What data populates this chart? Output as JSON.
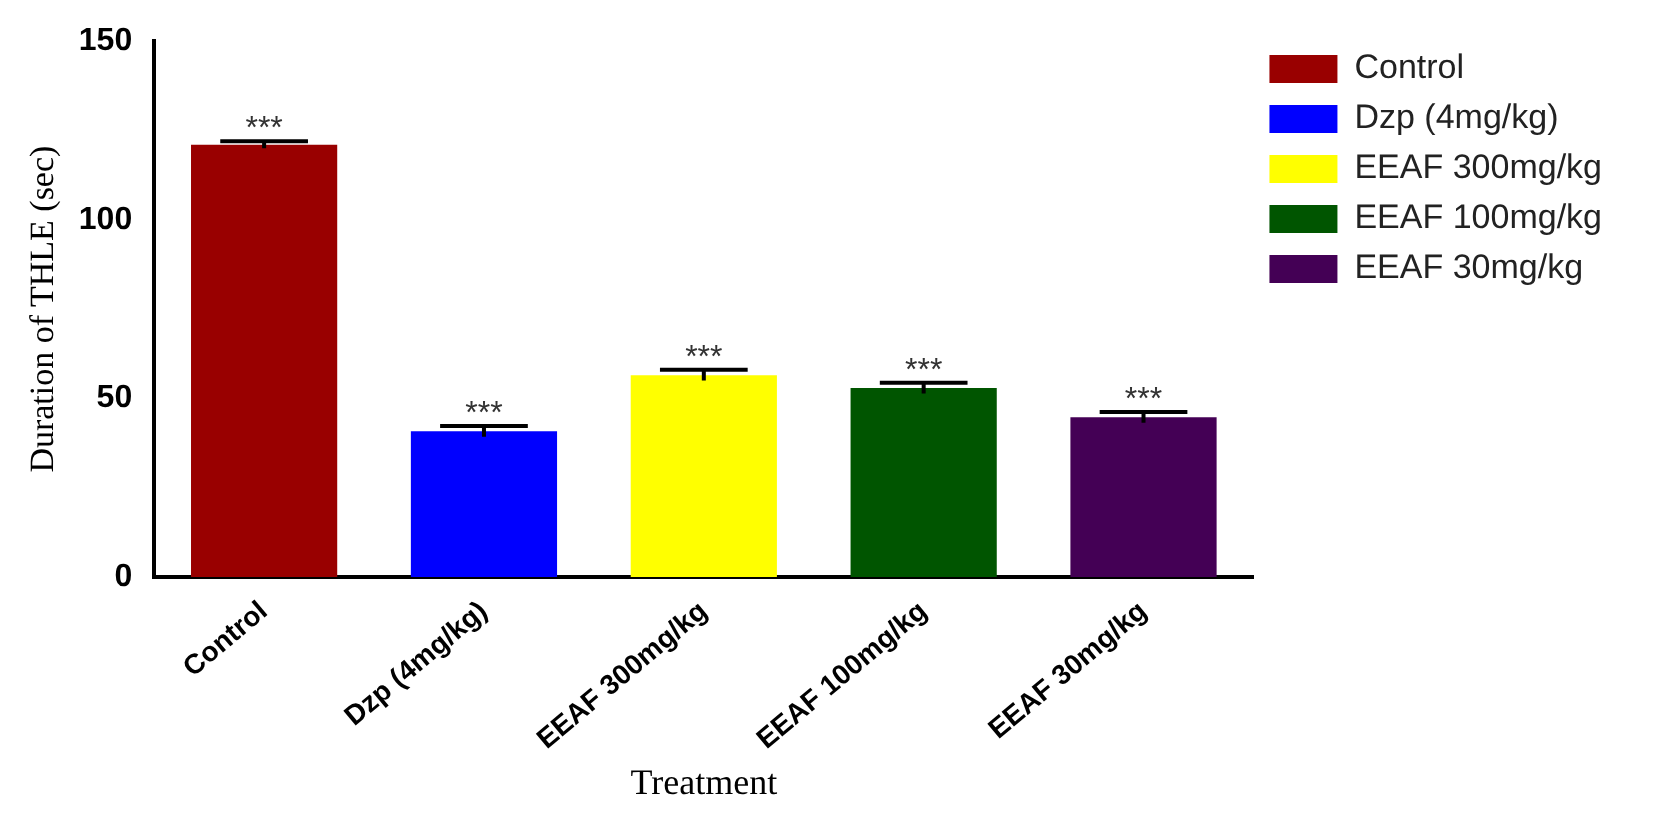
{
  "chart_data": {
    "type": "bar",
    "xlabel": "Treatment",
    "ylabel": "Duration of THLE (sec)",
    "categories": [
      "Control",
      "Dzp (4mg/kg)",
      "EEAF 300mg/kg",
      "EEAF 100mg/kg",
      "EEAF 30mg/kg"
    ],
    "series": [
      {
        "name": "Control",
        "color": "#990000",
        "values": [
          121,
          null,
          null,
          null,
          null
        ],
        "errors": [
          1,
          null,
          null,
          null,
          null
        ]
      },
      {
        "name": "Dzp (4mg/kg)",
        "color": "#0000ff",
        "values": [
          null,
          40.8,
          null,
          null,
          null
        ],
        "errors": [
          null,
          1.5,
          null,
          null,
          null
        ]
      },
      {
        "name": "EEAF 300mg/kg",
        "color": "#ffff00",
        "values": [
          null,
          null,
          56.5,
          null,
          null
        ],
        "errors": [
          null,
          null,
          1.5,
          null,
          null
        ]
      },
      {
        "name": "EEAF 100mg/kg",
        "color": "#005500",
        "values": [
          null,
          null,
          null,
          52.9,
          null
        ],
        "errors": [
          null,
          null,
          null,
          1.5,
          null
        ]
      },
      {
        "name": "EEAF 30mg/kg",
        "color": "#440055",
        "values": [
          null,
          null,
          null,
          null,
          44.7
        ],
        "errors": [
          null,
          null,
          null,
          null,
          1.5
        ]
      }
    ],
    "ylim": [
      0,
      150
    ],
    "yticks": [
      0,
      50,
      100,
      150
    ],
    "grid": false,
    "legend": "top right",
    "annotations": [
      {
        "text": "***",
        "x": "Control",
        "y": 122
      },
      {
        "text": "***",
        "x": "Dzp (4mg/kg)",
        "y": 42.3
      },
      {
        "text": "***",
        "x": "EEAF 300mg/kg",
        "y": 58
      },
      {
        "text": "***",
        "x": "EEAF 100mg/kg",
        "y": 54.4
      },
      {
        "text": "***",
        "x": "EEAF 30mg/kg",
        "y": 46.2
      }
    ]
  }
}
